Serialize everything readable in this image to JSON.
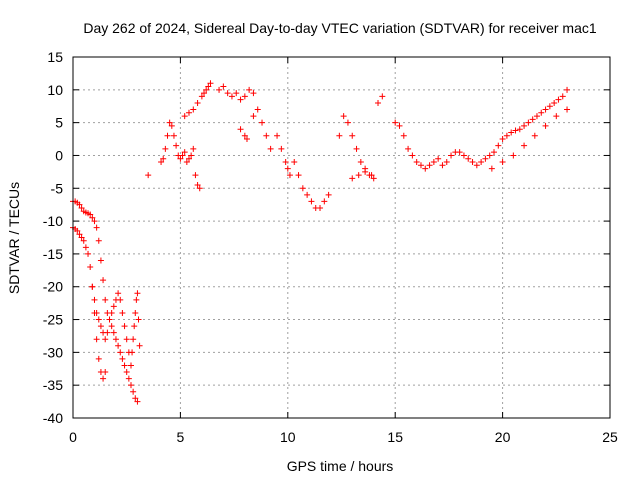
{
  "chart_data": {
    "type": "scatter",
    "title": "Day 262 of 2024, Sidereal Day-to-day VTEC variation (SDTVAR) for receiver mac1",
    "xlabel": "GPS time / hours",
    "ylabel": "SDTVAR / TECUs",
    "xlim": [
      0,
      25
    ],
    "ylim": [
      -40,
      15
    ],
    "xticks": [
      "0",
      "5",
      "10",
      "15",
      "20",
      "25"
    ],
    "yticks": [
      "-40",
      "-35",
      "-30",
      "-25",
      "-20",
      "-15",
      "-10",
      "-5",
      "0",
      "5",
      "10",
      "15"
    ],
    "grid": true,
    "marker": "+",
    "series": [
      {
        "name": "SDTVAR",
        "color": "#ff0000",
        "x": [
          0.0,
          0.1,
          0.2,
          0.3,
          0.4,
          0.5,
          0.6,
          0.7,
          0.8,
          0.9,
          1.0,
          1.1,
          1.2,
          1.3,
          1.4,
          1.5,
          1.6,
          1.7,
          1.8,
          1.9,
          2.0,
          2.1,
          2.2,
          2.3,
          2.4,
          2.5,
          2.6,
          2.7,
          2.8,
          2.9,
          3.0,
          0.0,
          0.1,
          0.2,
          0.3,
          0.4,
          0.5,
          0.6,
          0.7,
          0.8,
          0.9,
          1.0,
          1.1,
          1.2,
          1.3,
          1.4,
          1.5,
          0.9,
          1.0,
          1.1,
          1.2,
          1.3,
          1.4,
          1.5,
          1.6,
          1.7,
          1.8,
          1.9,
          2.0,
          2.1,
          2.2,
          2.3,
          2.4,
          2.5,
          2.6,
          2.7,
          2.75,
          2.8,
          2.85,
          2.9,
          2.95,
          3.0,
          3.05,
          3.1,
          3.5,
          4.1,
          4.2,
          4.3,
          4.4,
          4.5,
          4.6,
          4.7,
          4.8,
          4.9,
          5.0,
          5.1,
          5.2,
          5.3,
          5.4,
          5.5,
          5.6,
          5.7,
          5.8,
          5.9,
          5.2,
          5.4,
          5.6,
          5.8,
          6.0,
          6.1,
          6.2,
          6.3,
          6.4,
          6.8,
          7.0,
          7.2,
          7.4,
          7.6,
          7.8,
          8.0,
          8.2,
          8.4,
          7.8,
          8.0,
          8.1,
          8.4,
          8.6,
          8.8,
          9.0,
          9.2,
          9.5,
          9.7,
          9.9,
          10.0,
          10.1,
          10.3,
          10.5,
          10.7,
          10.9,
          11.1,
          11.3,
          11.5,
          11.7,
          11.9,
          12.4,
          12.6,
          12.8,
          13.0,
          13.2,
          13.4,
          13.6,
          13.8,
          14.0,
          14.2,
          14.4,
          13.0,
          13.3,
          13.6,
          13.9,
          15.0,
          15.2,
          15.4,
          15.6,
          15.8,
          16.0,
          16.2,
          16.4,
          16.6,
          16.8,
          17.0,
          17.2,
          17.4,
          17.6,
          17.8,
          18.0,
          18.2,
          18.4,
          18.6,
          18.8,
          19.0,
          19.2,
          19.4,
          19.6,
          19.8,
          20.0,
          20.2,
          20.4,
          20.6,
          20.8,
          21.0,
          21.2,
          21.4,
          21.6,
          21.8,
          22.0,
          22.2,
          22.4,
          22.6,
          22.8,
          23.0,
          19.5,
          20.0,
          20.5,
          21.0,
          21.5,
          22.0,
          22.5,
          23.0
        ],
        "y": [
          -7,
          -7,
          -7.2,
          -7.5,
          -8,
          -8.5,
          -8.7,
          -8.8,
          -9,
          -9.5,
          -10,
          -11,
          -13,
          -16,
          -19,
          -22,
          -24,
          -25,
          -26,
          -27,
          -28,
          -29,
          -30,
          -31,
          -32,
          -33,
          -34,
          -35,
          -36,
          -37,
          -37.5,
          -11,
          -11.2,
          -11.5,
          -12,
          -12.5,
          -13,
          -14,
          -15,
          -17,
          -20,
          -24,
          -28,
          -31,
          -33,
          -34,
          -33,
          -20,
          -22,
          -24,
          -25,
          -26,
          -27,
          -28,
          -27,
          -25,
          -24,
          -23,
          -22,
          -21,
          -22,
          -24,
          -26,
          -28,
          -30,
          -32,
          -30,
          -28,
          -26,
          -24,
          -22,
          -21,
          -25,
          -29,
          -3,
          -1,
          -0.5,
          1,
          3,
          5,
          4.5,
          3,
          1.5,
          0,
          -0.5,
          0,
          0.5,
          -1,
          -0.5,
          0,
          1,
          -3,
          -4.5,
          -5,
          6,
          6.5,
          7,
          8,
          9,
          9.5,
          10,
          10.5,
          11,
          10,
          10.5,
          9.5,
          9,
          9.5,
          8.5,
          9,
          10,
          9.5,
          4,
          3,
          2.5,
          6,
          7,
          5,
          3,
          1,
          3,
          1,
          -1,
          -2,
          -3,
          -1,
          -3,
          -5,
          -6,
          -7,
          -8,
          -8,
          -7,
          -6,
          3,
          6,
          5,
          3,
          1,
          -1,
          -2,
          -3,
          -3.5,
          8,
          9,
          -3.5,
          -3,
          -2.5,
          -3,
          5,
          4.5,
          3,
          1,
          0,
          -1,
          -1.5,
          -2,
          -1.5,
          -1,
          -0.5,
          -1.5,
          -1,
          0,
          0.5,
          0.5,
          0,
          -0.5,
          -1,
          -1.5,
          -1,
          -0.5,
          0,
          0.5,
          1.5,
          2.5,
          3,
          3.5,
          3.8,
          4,
          4.5,
          5,
          5.5,
          6,
          6.5,
          7,
          7.5,
          8,
          8.5,
          9,
          10,
          -2,
          -1,
          0,
          1.5,
          3,
          4.5,
          6,
          7
        ]
      }
    ]
  }
}
